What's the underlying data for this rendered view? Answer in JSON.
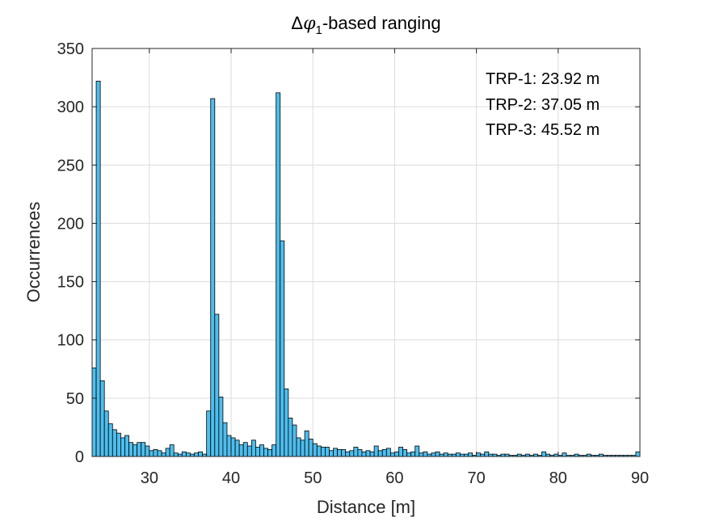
{
  "chart_data": {
    "type": "bar",
    "title_parts": [
      "Δ",
      "φ",
      "1",
      "-based ranging"
    ],
    "xlabel": "Distance [m]",
    "ylabel": "Occurrences",
    "xlim": [
      23,
      90
    ],
    "ylim": [
      0,
      350
    ],
    "xticks": [
      30,
      40,
      50,
      60,
      70,
      80,
      90
    ],
    "yticks": [
      0,
      50,
      100,
      150,
      200,
      250,
      300,
      350
    ],
    "grid": true,
    "bin_width": 0.5,
    "bar_color": "#4DBEEE",
    "edge_color": "#000000",
    "annotations": [
      "TRP-1: 23.92 m",
      "TRP-2: 37.05 m",
      "TRP-3: 45.52 m"
    ],
    "annotation_position": "top-right",
    "bins": [
      [
        23.25,
        76
      ],
      [
        23.75,
        322
      ],
      [
        24.25,
        65
      ],
      [
        24.75,
        39
      ],
      [
        25.25,
        28
      ],
      [
        25.75,
        23
      ],
      [
        26.25,
        20
      ],
      [
        26.75,
        16
      ],
      [
        27.25,
        18
      ],
      [
        27.75,
        12
      ],
      [
        28.25,
        10
      ],
      [
        28.75,
        12
      ],
      [
        29.25,
        12
      ],
      [
        29.75,
        9
      ],
      [
        30.25,
        5
      ],
      [
        30.75,
        6
      ],
      [
        31.25,
        5
      ],
      [
        31.75,
        3
      ],
      [
        32.25,
        7
      ],
      [
        32.75,
        10
      ],
      [
        33.25,
        3
      ],
      [
        33.75,
        2
      ],
      [
        34.25,
        4
      ],
      [
        34.75,
        3
      ],
      [
        35.25,
        2
      ],
      [
        35.75,
        3
      ],
      [
        36.25,
        4
      ],
      [
        36.75,
        2
      ],
      [
        37.25,
        39
      ],
      [
        37.75,
        307
      ],
      [
        38.25,
        122
      ],
      [
        38.75,
        51
      ],
      [
        39.25,
        29
      ],
      [
        39.75,
        18
      ],
      [
        40.25,
        16
      ],
      [
        40.75,
        14
      ],
      [
        41.25,
        10
      ],
      [
        41.75,
        12
      ],
      [
        42.25,
        9
      ],
      [
        42.75,
        14
      ],
      [
        43.25,
        8
      ],
      [
        43.75,
        10
      ],
      [
        44.25,
        7
      ],
      [
        44.75,
        6
      ],
      [
        45.25,
        10
      ],
      [
        45.75,
        312
      ],
      [
        46.25,
        185
      ],
      [
        46.75,
        58
      ],
      [
        47.25,
        33
      ],
      [
        47.75,
        27
      ],
      [
        48.25,
        16
      ],
      [
        48.75,
        14
      ],
      [
        49.25,
        22
      ],
      [
        49.75,
        15
      ],
      [
        50.25,
        11
      ],
      [
        50.75,
        9
      ],
      [
        51.25,
        8
      ],
      [
        51.75,
        8
      ],
      [
        52.25,
        5
      ],
      [
        52.75,
        7
      ],
      [
        53.25,
        6
      ],
      [
        53.75,
        6
      ],
      [
        54.25,
        4
      ],
      [
        54.75,
        5
      ],
      [
        55.25,
        8
      ],
      [
        55.75,
        6
      ],
      [
        56.25,
        4
      ],
      [
        56.75,
        5
      ],
      [
        57.25,
        4
      ],
      [
        57.75,
        9
      ],
      [
        58.25,
        5
      ],
      [
        58.75,
        6
      ],
      [
        59.25,
        7
      ],
      [
        59.75,
        3
      ],
      [
        60.25,
        4
      ],
      [
        60.75,
        8
      ],
      [
        61.25,
        6
      ],
      [
        61.75,
        3
      ],
      [
        62.25,
        4
      ],
      [
        62.75,
        9
      ],
      [
        63.25,
        3
      ],
      [
        63.75,
        4
      ],
      [
        64.25,
        2
      ],
      [
        64.75,
        3
      ],
      [
        65.25,
        4
      ],
      [
        65.75,
        2
      ],
      [
        66.25,
        3
      ],
      [
        66.75,
        2
      ],
      [
        67.25,
        2
      ],
      [
        67.75,
        3
      ],
      [
        68.25,
        2
      ],
      [
        68.75,
        2
      ],
      [
        69.25,
        3
      ],
      [
        69.75,
        1
      ],
      [
        70.25,
        3
      ],
      [
        70.75,
        2
      ],
      [
        71.25,
        4
      ],
      [
        71.75,
        2
      ],
      [
        72.25,
        2
      ],
      [
        72.75,
        1
      ],
      [
        73.25,
        2
      ],
      [
        73.75,
        2
      ],
      [
        74.25,
        1
      ],
      [
        74.75,
        1
      ],
      [
        75.25,
        2
      ],
      [
        75.75,
        1
      ],
      [
        76.25,
        2
      ],
      [
        76.75,
        1
      ],
      [
        77.25,
        2
      ],
      [
        77.75,
        1
      ],
      [
        78.25,
        4
      ],
      [
        78.75,
        2
      ],
      [
        79.25,
        1
      ],
      [
        79.75,
        2
      ],
      [
        80.25,
        1
      ],
      [
        80.75,
        3
      ],
      [
        81.25,
        1
      ],
      [
        81.75,
        1
      ],
      [
        82.25,
        2
      ],
      [
        82.75,
        1
      ],
      [
        83.25,
        1
      ],
      [
        83.75,
        2
      ],
      [
        84.25,
        1
      ],
      [
        84.75,
        1
      ],
      [
        85.25,
        2
      ],
      [
        85.75,
        1
      ],
      [
        86.25,
        1
      ],
      [
        86.75,
        1
      ],
      [
        87.25,
        1
      ],
      [
        87.75,
        1
      ],
      [
        88.25,
        1
      ],
      [
        88.75,
        1
      ],
      [
        89.25,
        1
      ],
      [
        89.75,
        4
      ]
    ]
  }
}
